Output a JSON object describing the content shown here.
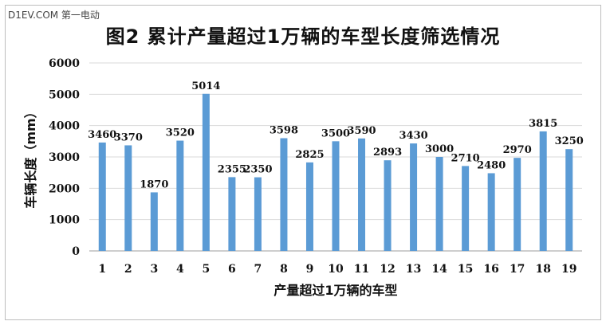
{
  "watermark": "D1EV.COM 第一电动",
  "chart_data": {
    "type": "bar",
    "title": "图2  累计产量超过1万辆的车型长度筛选情况",
    "xlabel": "产量超过1万辆的车型",
    "ylabel": "车辆长度（mm）",
    "categories": [
      "1",
      "2",
      "3",
      "4",
      "5",
      "6",
      "7",
      "8",
      "9",
      "10",
      "11",
      "12",
      "13",
      "14",
      "15",
      "16",
      "17",
      "18",
      "19"
    ],
    "series": [
      {
        "values": [
          3460,
          3370,
          1870,
          3520,
          5014,
          2355,
          2350,
          3598,
          2825,
          3500,
          3590,
          2893,
          3430,
          3000,
          2710,
          2480,
          2970,
          3815,
          3250
        ]
      }
    ],
    "data_labels": [
      "3460",
      "3370",
      "1870",
      "3520",
      "5014",
      "2355",
      "2350",
      "3598",
      "2825",
      "3500",
      "3590",
      "2893",
      "3430",
      "3000",
      "2710",
      "2480",
      "2970",
      "3815",
      "3250"
    ],
    "ylim": [
      0,
      6000
    ],
    "yticks": [
      0,
      1000,
      2000,
      3000,
      4000,
      5000,
      6000
    ],
    "grid": true,
    "bar_color": "#5b9bd5"
  }
}
